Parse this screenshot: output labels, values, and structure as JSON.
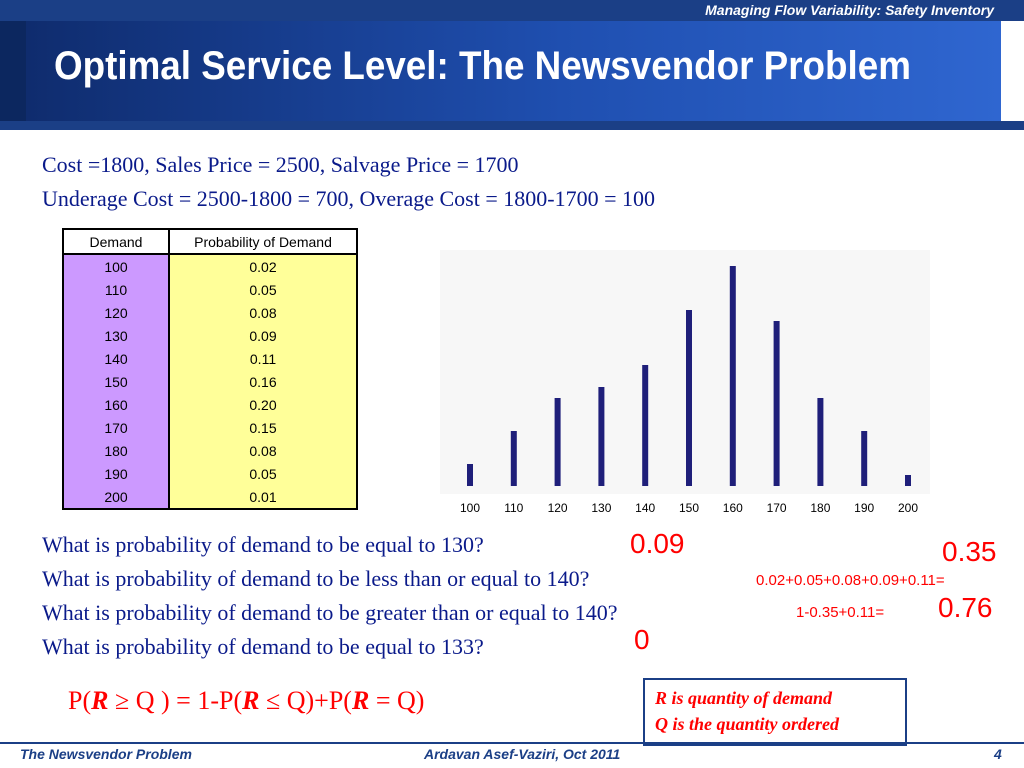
{
  "header": {
    "top_title": "Managing Flow Variability:  Safety Inventory",
    "slide_title": "Optimal Service Level:  The Newsvendor Problem"
  },
  "text": {
    "line1": "Cost =1800, Sales Price = 2500, Salvage Price = 1700",
    "line2": "Underage Cost = 2500-1800 = 700, Overage Cost = 1800-1700 = 100"
  },
  "table": {
    "headers": [
      "Demand",
      "Probability of Demand"
    ],
    "rows": [
      [
        "100",
        "0.02"
      ],
      [
        "110",
        "0.05"
      ],
      [
        "120",
        "0.08"
      ],
      [
        "130",
        "0.09"
      ],
      [
        "140",
        "0.11"
      ],
      [
        "150",
        "0.16"
      ],
      [
        "160",
        "0.20"
      ],
      [
        "170",
        "0.15"
      ],
      [
        "180",
        "0.08"
      ],
      [
        "190",
        "0.05"
      ],
      [
        "200",
        "0.01"
      ]
    ]
  },
  "chart_data": {
    "type": "bar",
    "categories": [
      "100",
      "110",
      "120",
      "130",
      "140",
      "150",
      "160",
      "170",
      "180",
      "190",
      "200"
    ],
    "values": [
      0.02,
      0.05,
      0.08,
      0.09,
      0.11,
      0.16,
      0.2,
      0.15,
      0.08,
      0.05,
      0.01
    ],
    "title": "",
    "xlabel": "",
    "ylabel": "",
    "ylim": [
      0,
      0.2
    ],
    "grid": false,
    "color": "#1f1f7a"
  },
  "questions": {
    "q1": "What is probability of demand to be equal to 130?",
    "q2": "What is probability of demand to be less than or equal to 140?",
    "q3": "What is probability of demand to be greater than or equal to 140?",
    "q4": "What is probability of demand to be equal to 133?"
  },
  "answers": {
    "a1": "0.09",
    "a2_calc": "0.02+0.05+0.08+0.09+0.11=",
    "a2": "0.35",
    "a3_calc": "1-0.35+0.11=",
    "a3": "0.76",
    "a4": "0"
  },
  "formula": {
    "p1": "P(",
    "r1": "R",
    "p2": "  ≥ Q ) = 1-P(",
    "r2": "R",
    "p3": " ≤ Q)+P(",
    "r3": "R",
    "p4": " = Q)"
  },
  "legend": {
    "line1": "R is quantity of demand",
    "line2": "Q is the quantity ordered"
  },
  "footer": {
    "left": "The Newsvendor Problem",
    "center": "Ardavan Asef-Vaziri, Oct 2011",
    "page": "4"
  },
  "colors": {
    "navy": "#1b3f86",
    "text_blue": "#0a1a8a",
    "answer_red": "#ff0000",
    "demand_purple": "#cc99ff",
    "prob_yellow": "#ffff99"
  }
}
